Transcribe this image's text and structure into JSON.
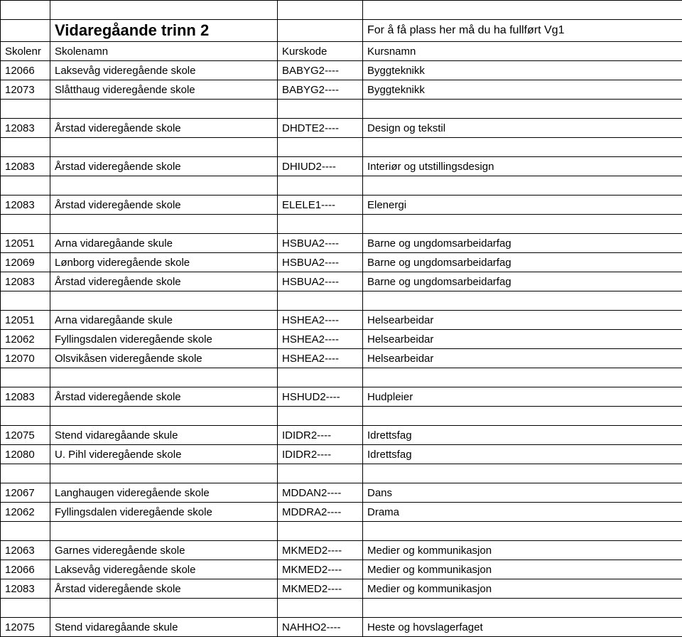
{
  "title_main": "Vidaregåande trinn 2",
  "title_sub": "For å få plass her må du ha fullført Vg1",
  "header": {
    "skolenr": "Skolenr",
    "skolenamn": "Skolenamn",
    "kurskode": "Kurskode",
    "kursnamn": "Kursnamn"
  },
  "rows": [
    {
      "type": "empty"
    },
    {
      "type": "title"
    },
    {
      "type": "header"
    },
    {
      "type": "data",
      "c0": "12066",
      "c1": "Laksevåg videregående skole",
      "c2": "BABYG2----",
      "c3": "Byggteknikk"
    },
    {
      "type": "data",
      "c0": "12073",
      "c1": "Slåtthaug videregående skole",
      "c2": "BABYG2----",
      "c3": "Byggteknikk"
    },
    {
      "type": "empty"
    },
    {
      "type": "data",
      "c0": "12083",
      "c1": "Årstad videregående skole",
      "c2": "DHDTE2----",
      "c3": "Design og tekstil"
    },
    {
      "type": "empty"
    },
    {
      "type": "data",
      "c0": "12083",
      "c1": "Årstad videregående skole",
      "c2": "DHIUD2----",
      "c3": "Interiør og utstillingsdesign"
    },
    {
      "type": "empty"
    },
    {
      "type": "data",
      "c0": "12083",
      "c1": "Årstad videregående skole",
      "c2": "ELELE1----",
      "c3": "Elenergi"
    },
    {
      "type": "empty"
    },
    {
      "type": "data",
      "c0": "12051",
      "c1": "Arna vidaregåande skule",
      "c2": "HSBUA2----",
      "c3": "Barne og ungdomsarbeidarfag"
    },
    {
      "type": "data",
      "c0": "12069",
      "c1": "Lønborg videregående skole",
      "c2": "HSBUA2----",
      "c3": "Barne og ungdomsarbeidarfag"
    },
    {
      "type": "data",
      "c0": "12083",
      "c1": "Årstad videregående skole",
      "c2": "HSBUA2----",
      "c3": "Barne og ungdomsarbeidarfag"
    },
    {
      "type": "empty"
    },
    {
      "type": "data",
      "c0": "12051",
      "c1": "Arna vidaregåande skule",
      "c2": "HSHEA2----",
      "c3": "Helsearbeidar"
    },
    {
      "type": "data",
      "c0": "12062",
      "c1": "Fyllingsdalen videregående skole",
      "c2": "HSHEA2----",
      "c3": "Helsearbeidar"
    },
    {
      "type": "data",
      "c0": "12070",
      "c1": "Olsvikåsen videregående skole",
      "c2": "HSHEA2----",
      "c3": "Helsearbeidar"
    },
    {
      "type": "empty"
    },
    {
      "type": "data",
      "c0": "12083",
      "c1": "Årstad videregående skole",
      "c2": "HSHUD2----",
      "c3": "Hudpleier"
    },
    {
      "type": "empty"
    },
    {
      "type": "data",
      "c0": "12075",
      "c1": "Stend vidaregåande skule",
      "c2": "IDIDR2----",
      "c3": "Idrettsfag"
    },
    {
      "type": "data",
      "c0": "12080",
      "c1": "U. Pihl videregående skole",
      "c2": "IDIDR2----",
      "c3": "Idrettsfag"
    },
    {
      "type": "empty"
    },
    {
      "type": "data",
      "c0": "12067",
      "c1": "Langhaugen videregående skole",
      "c2": "MDDAN2----",
      "c3": "Dans"
    },
    {
      "type": "data",
      "c0": "12062",
      "c1": "Fyllingsdalen videregående skole",
      "c2": "MDDRA2----",
      "c3": "Drama"
    },
    {
      "type": "empty"
    },
    {
      "type": "data",
      "c0": "12063",
      "c1": "Garnes videregående skole",
      "c2": "MKMED2----",
      "c3": "Medier og kommunikasjon"
    },
    {
      "type": "data",
      "c0": "12066",
      "c1": "Laksevåg videregående skole",
      "c2": "MKMED2----",
      "c3": "Medier og kommunikasjon"
    },
    {
      "type": "data",
      "c0": "12083",
      "c1": "Årstad videregående skole",
      "c2": "MKMED2----",
      "c3": "Medier og kommunikasjon"
    },
    {
      "type": "empty"
    },
    {
      "type": "data",
      "c0": "12075",
      "c1": "Stend vidaregåande skule",
      "c2": "NAHHO2----",
      "c3": "Heste og hovslagerfaget"
    }
  ]
}
